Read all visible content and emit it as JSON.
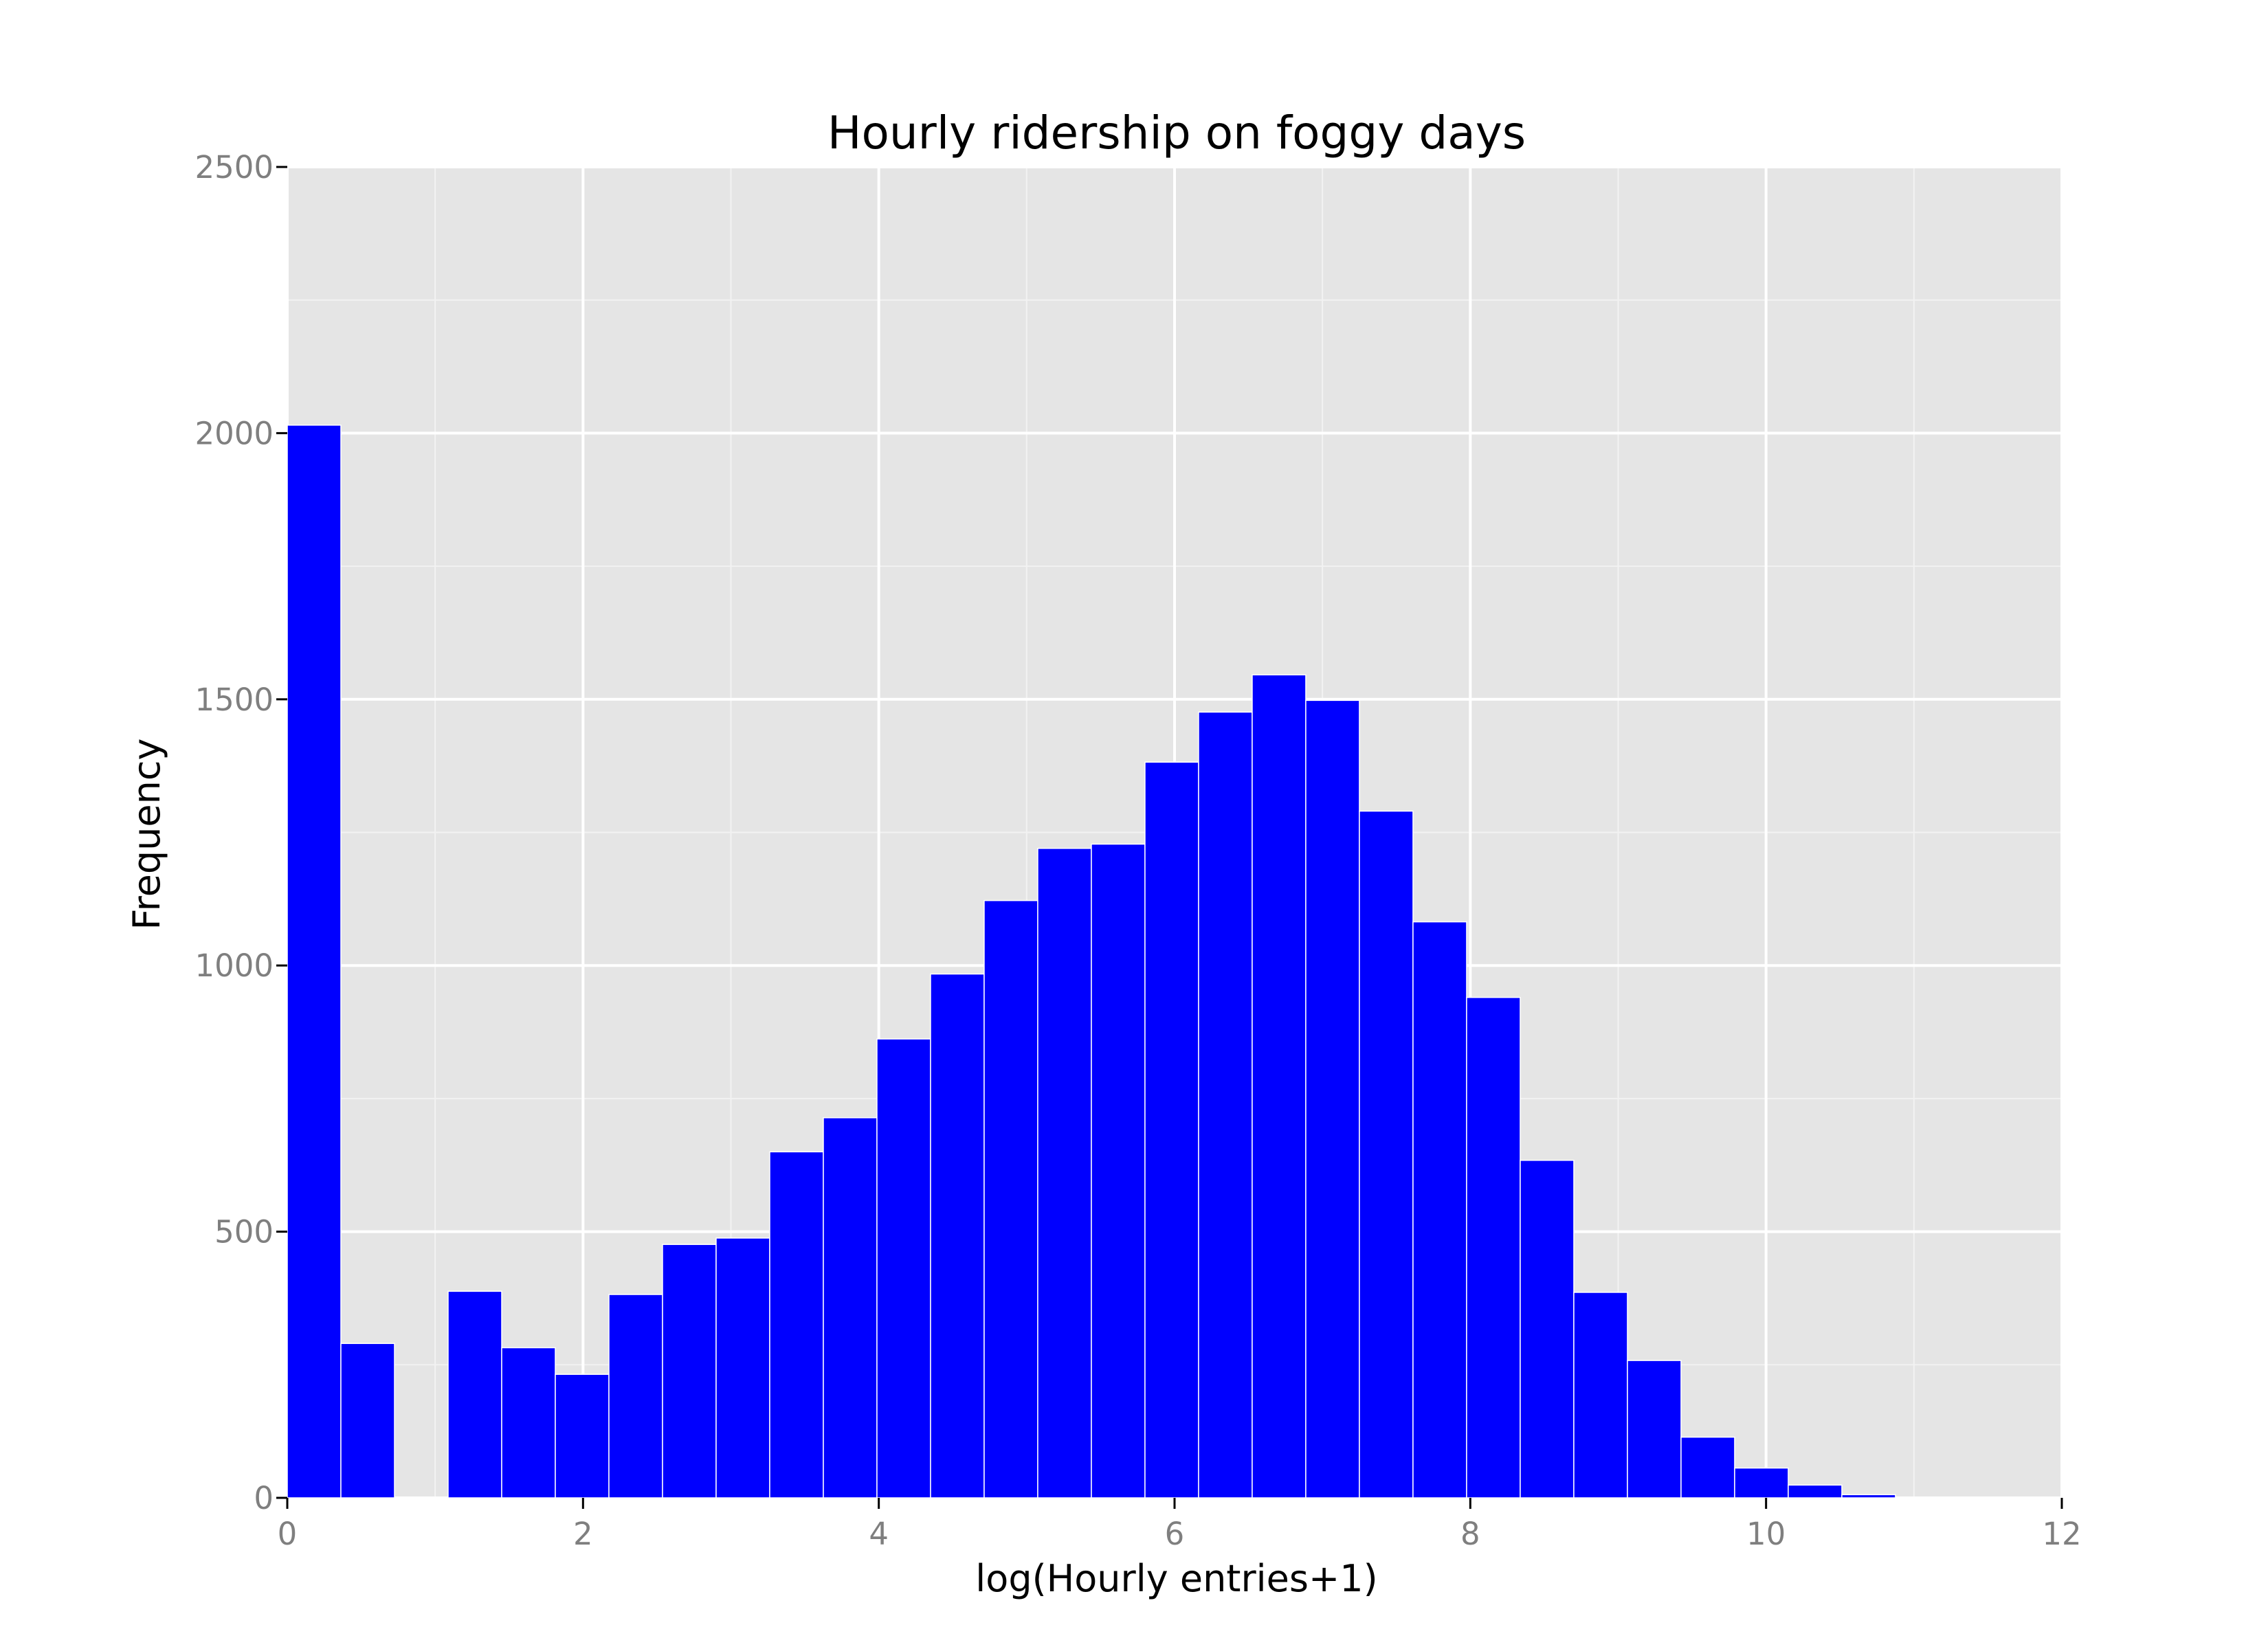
{
  "chart_data": {
    "type": "bar",
    "title": "Hourly ridership on foggy days",
    "xlabel": "log(Hourly entries+1)",
    "ylabel": "Frequency",
    "xlim": [
      0,
      12
    ],
    "ylim": [
      0,
      2500
    ],
    "x_ticks": [
      0,
      2,
      4,
      6,
      8,
      10,
      12
    ],
    "x_tick_labels": [
      "0",
      "2",
      "4",
      "6",
      "8",
      "10",
      "12"
    ],
    "y_ticks": [
      0,
      500,
      1000,
      1500,
      2000,
      2500
    ],
    "y_tick_labels": [
      "0",
      "500",
      "1000",
      "1500",
      "2000",
      "2500"
    ],
    "grid": true,
    "bins": {
      "start": 0,
      "width": 0.3625,
      "counts": [
        2015,
        290,
        0,
        388,
        282,
        232,
        382,
        476,
        488,
        650,
        714,
        862,
        984,
        1122,
        1220,
        1228,
        1382,
        1476,
        1546,
        1498,
        1290,
        1082,
        940,
        634,
        386,
        258,
        114,
        56,
        24,
        6
      ]
    },
    "colors": {
      "bar_fill": "#0000ff",
      "bar_edge": "#ffffff",
      "panel_background": "#e5e5e5",
      "grid_major": "#ffffff",
      "grid_minor": "#f2f2f2",
      "tick_text": "#7f7f7f"
    }
  }
}
